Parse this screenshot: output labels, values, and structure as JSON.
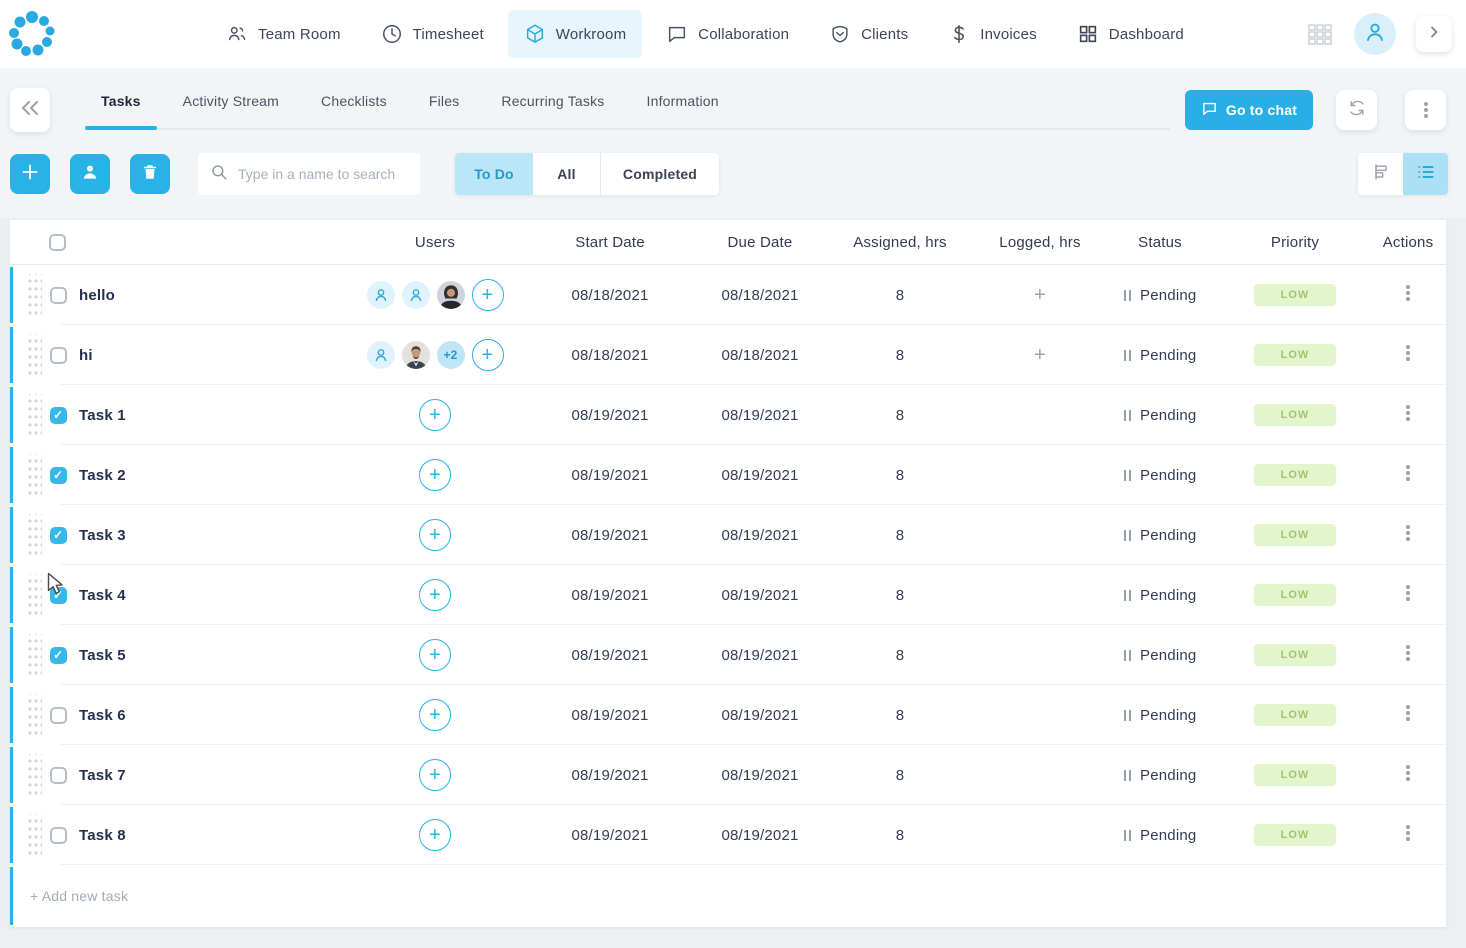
{
  "colors": {
    "accent": "#29b2e6",
    "active_pill_bg": "#e7f6fd",
    "segment_active_bg": "#b9e7f8",
    "checkbox_checked": "#35b9e9",
    "low_badge_bg": "#e3f5cd",
    "low_badge_text": "#a0c474"
  },
  "nav": {
    "items": [
      {
        "label": "Team Room",
        "icon": "people-icon",
        "active": false
      },
      {
        "label": "Timesheet",
        "icon": "clock-icon",
        "active": false
      },
      {
        "label": "Workroom",
        "icon": "cube-icon",
        "active": true
      },
      {
        "label": "Collaboration",
        "icon": "chat-icon",
        "active": false
      },
      {
        "label": "Clients",
        "icon": "shield-icon",
        "active": false
      },
      {
        "label": "Invoices",
        "icon": "dollar-icon",
        "active": false
      },
      {
        "label": "Dashboard",
        "icon": "dashboard-icon",
        "active": false
      }
    ],
    "right_icons": [
      "apps-grid-icon",
      "account-icon",
      "chevron-right-icon"
    ]
  },
  "workroom_header": {
    "tabs": [
      {
        "label": "Tasks",
        "active": true
      },
      {
        "label": "Activity Stream",
        "active": false
      },
      {
        "label": "Checklists",
        "active": false
      },
      {
        "label": "Files",
        "active": false
      },
      {
        "label": "Recurring Tasks",
        "active": false
      },
      {
        "label": "Information",
        "active": false
      }
    ],
    "go_to_chat_label": "Go to chat",
    "action_icons": [
      "back-icon",
      "refresh-icon",
      "kebab-icon"
    ]
  },
  "toolbar": {
    "action_icons": [
      "plus-icon",
      "assign-user-icon",
      "trash-icon"
    ],
    "search_placeholder": "Type in a name to search",
    "filters": [
      {
        "label": "To Do",
        "active": true
      },
      {
        "label": "All",
        "active": false
      },
      {
        "label": "Completed",
        "active": false
      }
    ],
    "view_icons": [
      "gantt-view-icon",
      "list-view-icon"
    ],
    "active_view": "list"
  },
  "table": {
    "columns": [
      "Users",
      "Start Date",
      "Due Date",
      "Assigned, hrs",
      "Logged, hrs",
      "Status",
      "Priority",
      "Actions"
    ],
    "rows": [
      {
        "name": "hello",
        "checked": false,
        "users": [
          "user-placeholder",
          "user-placeholder",
          "photo-female"
        ],
        "start_date": "08/18/2021",
        "due_date": "08/18/2021",
        "assigned_hrs": "8",
        "logged_add": true,
        "status": "Pending",
        "priority": "LOW"
      },
      {
        "name": "hi",
        "checked": false,
        "users": [
          "user-placeholder",
          "photo-male",
          "+2"
        ],
        "start_date": "08/18/2021",
        "due_date": "08/18/2021",
        "assigned_hrs": "8",
        "logged_add": true,
        "status": "Pending",
        "priority": "LOW"
      },
      {
        "name": "Task 1",
        "checked": true,
        "users": [],
        "start_date": "08/19/2021",
        "due_date": "08/19/2021",
        "assigned_hrs": "8",
        "logged_add": false,
        "status": "Pending",
        "priority": "LOW"
      },
      {
        "name": "Task 2",
        "checked": true,
        "users": [],
        "start_date": "08/19/2021",
        "due_date": "08/19/2021",
        "assigned_hrs": "8",
        "logged_add": false,
        "status": "Pending",
        "priority": "LOW"
      },
      {
        "name": "Task 3",
        "checked": true,
        "users": [],
        "start_date": "08/19/2021",
        "due_date": "08/19/2021",
        "assigned_hrs": "8",
        "logged_add": false,
        "status": "Pending",
        "priority": "LOW"
      },
      {
        "name": "Task 4",
        "checked": true,
        "users": [],
        "start_date": "08/19/2021",
        "due_date": "08/19/2021",
        "assigned_hrs": "8",
        "logged_add": false,
        "status": "Pending",
        "priority": "LOW"
      },
      {
        "name": "Task 5",
        "checked": true,
        "users": [],
        "start_date": "08/19/2021",
        "due_date": "08/19/2021",
        "assigned_hrs": "8",
        "logged_add": false,
        "status": "Pending",
        "priority": "LOW"
      },
      {
        "name": "Task 6",
        "checked": false,
        "users": [],
        "start_date": "08/19/2021",
        "due_date": "08/19/2021",
        "assigned_hrs": "8",
        "logged_add": false,
        "status": "Pending",
        "priority": "LOW"
      },
      {
        "name": "Task 7",
        "checked": false,
        "users": [],
        "start_date": "08/19/2021",
        "due_date": "08/19/2021",
        "assigned_hrs": "8",
        "logged_add": false,
        "status": "Pending",
        "priority": "LOW"
      },
      {
        "name": "Task 8",
        "checked": false,
        "users": [],
        "start_date": "08/19/2021",
        "due_date": "08/19/2021",
        "assigned_hrs": "8",
        "logged_add": false,
        "status": "Pending",
        "priority": "LOW"
      }
    ],
    "row_icons": [
      "drag-handle-dots",
      "add-user-icon",
      "pause-icon",
      "kebab-icon"
    ],
    "add_new_task_label": "+ Add new task"
  }
}
